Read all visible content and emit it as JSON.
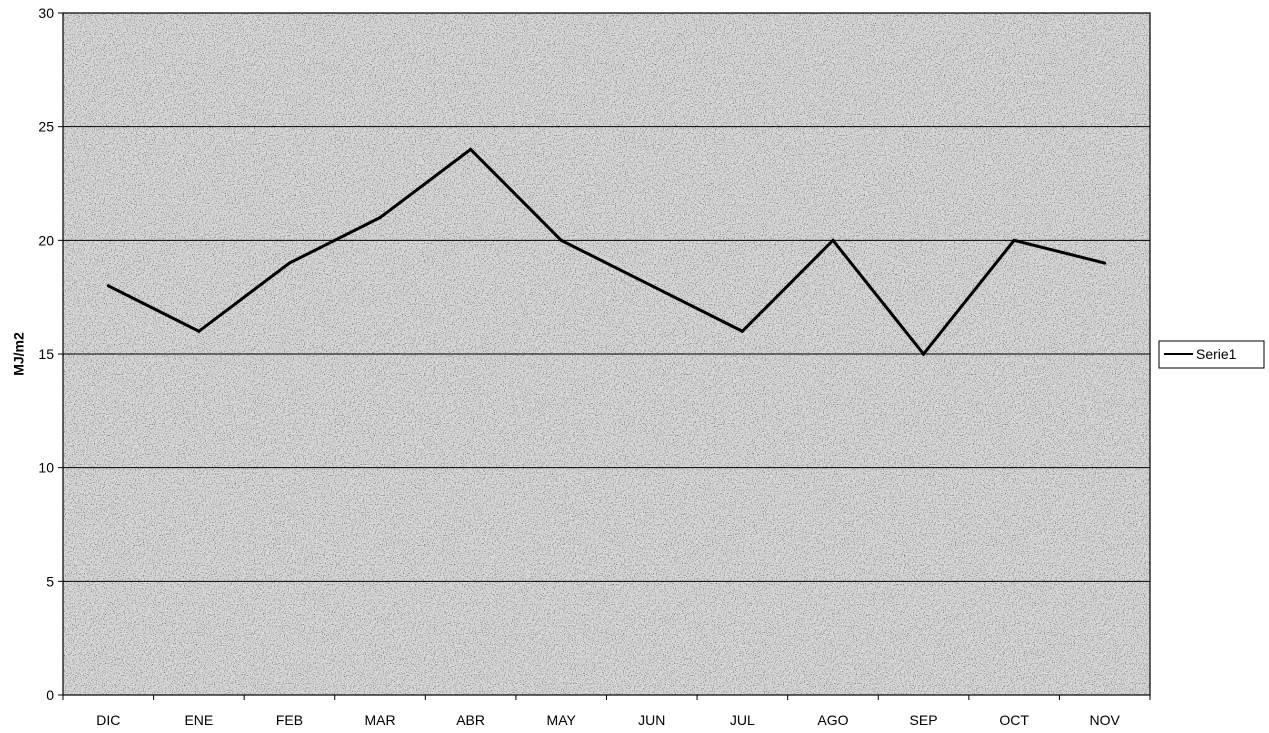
{
  "chart_data": {
    "type": "line",
    "title": "",
    "xlabel": "",
    "ylabel": "MJ/m2",
    "categories": [
      "DIC",
      "ENE",
      "FEB",
      "MAR",
      "ABR",
      "MAY",
      "JUN",
      "JUL",
      "AGO",
      "SEP",
      "OCT",
      "NOV"
    ],
    "series": [
      {
        "name": "Serie1",
        "values": [
          18,
          16,
          19,
          21,
          24,
          20,
          18,
          16,
          20,
          15,
          20,
          19
        ],
        "color": "#000000"
      }
    ],
    "ylim": [
      0,
      30
    ],
    "yticks": [
      0,
      5,
      10,
      15,
      20,
      25,
      30
    ],
    "grid": true,
    "plot_background": "#d9d9d9",
    "legend_position": "right"
  }
}
